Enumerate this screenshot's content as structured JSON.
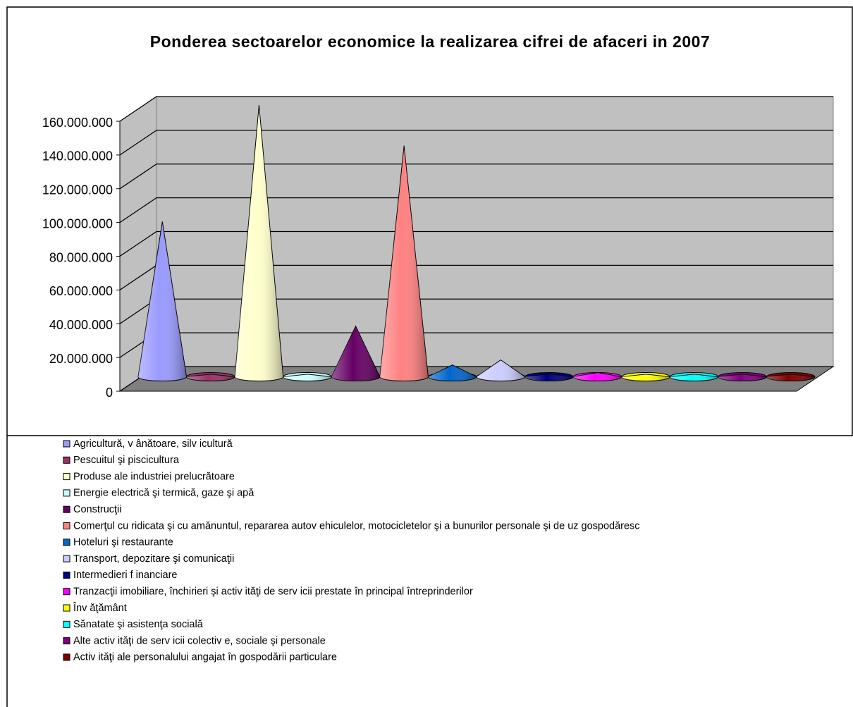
{
  "chart_data": {
    "type": "cone3d",
    "title": "Ponderea sectoarelor economice la realizarea cifrei de afaceri in 2007",
    "categories": [
      "Agricultură, v ânătoare, silv icultură",
      "Pescuitul şi piscicultura",
      "Produse ale industriei prelucrătoare",
      "Energie electrică şi termică, gaze şi apă",
      "Construcţii",
      "Comerţul cu ridicata şi cu amănuntul, repararea autov ehiculelor, motocicletelor şi a bunurilor personale şi de uz gospodăresc",
      "Hoteluri şi restaurante",
      "Transport, depozitare şi comunicaţii",
      "Intermedieri f inanciare",
      "Tranzacţii imobiliare, închirieri şi activ ităţi de serv icii prestate în principal întreprinderilor",
      "Înv ăţământ",
      "Sănatate şi asistenţa socială",
      "Alte activ ităţi de serv icii colectiv e, sociale şi personale",
      "Activ ităţi ale personalului angajat în gospodării particulare"
    ],
    "values": [
      92000000,
      1500000,
      161000000,
      1500000,
      30000000,
      137000000,
      7000000,
      10000000,
      1500000,
      2500000,
      1500000,
      1500000,
      1500000,
      1500000
    ],
    "colors": [
      "#9999ff",
      "#993366",
      "#ffffcc",
      "#ccffff",
      "#660066",
      "#ff8080",
      "#0066cc",
      "#ccccff",
      "#000080",
      "#ff00ff",
      "#ffff00",
      "#00ffff",
      "#800080",
      "#800000"
    ],
    "ylim": [
      0,
      160000000
    ],
    "yticks": [
      {
        "value": 0,
        "label": "0"
      },
      {
        "value": 20000000,
        "label": "20.000.000"
      },
      {
        "value": 40000000,
        "label": "40.000.000"
      },
      {
        "value": 60000000,
        "label": "60.000.000"
      },
      {
        "value": 80000000,
        "label": "80.000.000"
      },
      {
        "value": 100000000,
        "label": "100.000.000"
      },
      {
        "value": 120000000,
        "label": "120.000.000"
      },
      {
        "value": 140000000,
        "label": "140.000.000"
      },
      {
        "value": 160000000,
        "label": "160.000.000"
      }
    ],
    "grid": true,
    "legend": "bottom"
  }
}
